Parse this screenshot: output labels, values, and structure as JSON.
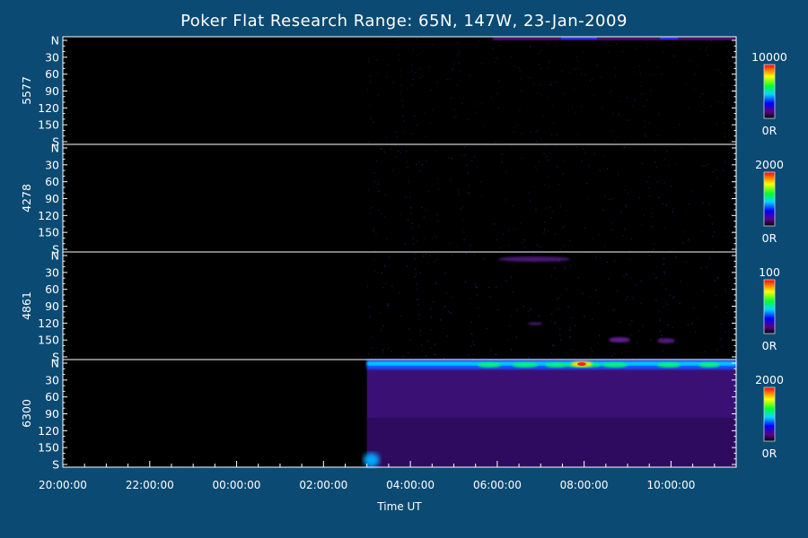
{
  "chart_data": {
    "type": "heatmap",
    "title": "Poker Flat Research Range: 65N, 147W, 23-Jan-2009",
    "xlabel": "Time UT",
    "x_ticks": [
      "20:00:00",
      "22:00:00",
      "00:00:00",
      "02:00:00",
      "04:00:00",
      "06:00:00",
      "08:00:00",
      "10:00:00"
    ],
    "x_range": [
      "20:00:00",
      "11:30:00"
    ],
    "data_start": "03:00:00",
    "y_ticks": [
      "N",
      "30",
      "60",
      "90",
      "120",
      "150",
      "S"
    ],
    "y_range": [
      0,
      180
    ],
    "colormap": "rainbow",
    "panels": [
      {
        "ylabel": "5577",
        "cbar_max": "10000",
        "cbar_min": "0R"
      },
      {
        "ylabel": "4278",
        "cbar_max": "2000",
        "cbar_min": "0R"
      },
      {
        "ylabel": "4861",
        "cbar_max": "100",
        "cbar_min": "0R"
      },
      {
        "ylabel": "6300",
        "cbar_max": "2000",
        "cbar_min": "0R"
      }
    ]
  }
}
